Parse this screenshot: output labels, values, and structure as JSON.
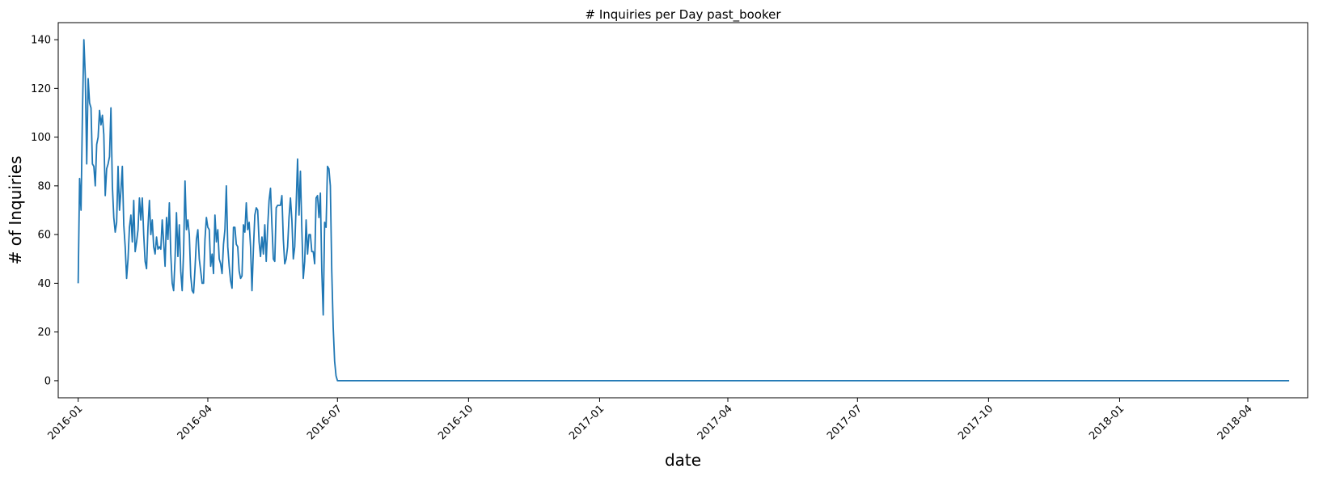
{
  "chart_data": {
    "type": "line",
    "title": "# Inquiries per Day past_booker",
    "xlabel": "date",
    "ylabel": "# of Inquiries",
    "x_type": "date",
    "xlim": [
      "2015-12-18",
      "2018-05-13"
    ],
    "ylim": [
      -7,
      147
    ],
    "x_ticks": [
      "2016-01",
      "2016-04",
      "2016-07",
      "2016-10",
      "2017-01",
      "2017-04",
      "2017-07",
      "2017-10",
      "2018-01",
      "2018-04"
    ],
    "y_ticks": [
      0,
      20,
      40,
      60,
      80,
      100,
      120,
      140
    ],
    "grid": false,
    "legend": "none",
    "series": [
      {
        "color": "#1f77b4",
        "points": [
          [
            "2016-01-01",
            40
          ],
          [
            "2016-01-02",
            83
          ],
          [
            "2016-01-03",
            70
          ],
          [
            "2016-01-04",
            110
          ],
          [
            "2016-01-05",
            140
          ],
          [
            "2016-01-06",
            125
          ],
          [
            "2016-01-07",
            89
          ],
          [
            "2016-01-08",
            124
          ],
          [
            "2016-01-09",
            114
          ],
          [
            "2016-01-10",
            112
          ],
          [
            "2016-01-11",
            89
          ],
          [
            "2016-01-12",
            88
          ],
          [
            "2016-01-13",
            80
          ],
          [
            "2016-01-14",
            97
          ],
          [
            "2016-01-15",
            100
          ],
          [
            "2016-01-16",
            111
          ],
          [
            "2016-01-17",
            105
          ],
          [
            "2016-01-18",
            109
          ],
          [
            "2016-01-19",
            101
          ],
          [
            "2016-01-20",
            76
          ],
          [
            "2016-01-21",
            87
          ],
          [
            "2016-01-22",
            89
          ],
          [
            "2016-01-23",
            92
          ],
          [
            "2016-01-24",
            112
          ],
          [
            "2016-01-25",
            80
          ],
          [
            "2016-01-26",
            67
          ],
          [
            "2016-01-27",
            61
          ],
          [
            "2016-01-28",
            65
          ],
          [
            "2016-01-29",
            88
          ],
          [
            "2016-01-30",
            70
          ],
          [
            "2016-01-31",
            78
          ],
          [
            "2016-02-01",
            88
          ],
          [
            "2016-02-02",
            64
          ],
          [
            "2016-02-03",
            55
          ],
          [
            "2016-02-04",
            42
          ],
          [
            "2016-02-05",
            50
          ],
          [
            "2016-02-06",
            63
          ],
          [
            "2016-02-07",
            68
          ],
          [
            "2016-02-08",
            57
          ],
          [
            "2016-02-09",
            74
          ],
          [
            "2016-02-10",
            53
          ],
          [
            "2016-02-11",
            57
          ],
          [
            "2016-02-12",
            62
          ],
          [
            "2016-02-13",
            75
          ],
          [
            "2016-02-14",
            66
          ],
          [
            "2016-02-15",
            75
          ],
          [
            "2016-02-16",
            60
          ],
          [
            "2016-02-17",
            49
          ],
          [
            "2016-02-18",
            46
          ],
          [
            "2016-02-19",
            63
          ],
          [
            "2016-02-20",
            74
          ],
          [
            "2016-02-21",
            60
          ],
          [
            "2016-02-22",
            66
          ],
          [
            "2016-02-23",
            55
          ],
          [
            "2016-02-24",
            52
          ],
          [
            "2016-02-25",
            59
          ],
          [
            "2016-02-26",
            54
          ],
          [
            "2016-02-27",
            55
          ],
          [
            "2016-02-28",
            54
          ],
          [
            "2016-02-29",
            66
          ],
          [
            "2016-03-01",
            57
          ],
          [
            "2016-03-02",
            47
          ],
          [
            "2016-03-03",
            67
          ],
          [
            "2016-03-04",
            58
          ],
          [
            "2016-03-05",
            73
          ],
          [
            "2016-03-06",
            52
          ],
          [
            "2016-03-07",
            40
          ],
          [
            "2016-03-08",
            37
          ],
          [
            "2016-03-09",
            50
          ],
          [
            "2016-03-10",
            69
          ],
          [
            "2016-03-11",
            51
          ],
          [
            "2016-03-12",
            64
          ],
          [
            "2016-03-13",
            45
          ],
          [
            "2016-03-14",
            37
          ],
          [
            "2016-03-15",
            53
          ],
          [
            "2016-03-16",
            82
          ],
          [
            "2016-03-17",
            62
          ],
          [
            "2016-03-18",
            66
          ],
          [
            "2016-03-19",
            60
          ],
          [
            "2016-03-20",
            43
          ],
          [
            "2016-03-21",
            37
          ],
          [
            "2016-03-22",
            36
          ],
          [
            "2016-03-23",
            46
          ],
          [
            "2016-03-24",
            58
          ],
          [
            "2016-03-25",
            62
          ],
          [
            "2016-03-26",
            50
          ],
          [
            "2016-03-27",
            45
          ],
          [
            "2016-03-28",
            40
          ],
          [
            "2016-03-29",
            40
          ],
          [
            "2016-03-30",
            58
          ],
          [
            "2016-03-31",
            67
          ],
          [
            "2016-04-01",
            63
          ],
          [
            "2016-04-02",
            62
          ],
          [
            "2016-04-03",
            47
          ],
          [
            "2016-04-04",
            52
          ],
          [
            "2016-04-05",
            44
          ],
          [
            "2016-04-06",
            68
          ],
          [
            "2016-04-07",
            57
          ],
          [
            "2016-04-08",
            62
          ],
          [
            "2016-04-09",
            50
          ],
          [
            "2016-04-10",
            48
          ],
          [
            "2016-04-11",
            44
          ],
          [
            "2016-04-12",
            56
          ],
          [
            "2016-04-13",
            62
          ],
          [
            "2016-04-14",
            80
          ],
          [
            "2016-04-15",
            55
          ],
          [
            "2016-04-16",
            47
          ],
          [
            "2016-04-17",
            41
          ],
          [
            "2016-04-18",
            38
          ],
          [
            "2016-04-19",
            63
          ],
          [
            "2016-04-20",
            63
          ],
          [
            "2016-04-21",
            56
          ],
          [
            "2016-04-22",
            55
          ],
          [
            "2016-04-23",
            45
          ],
          [
            "2016-04-24",
            42
          ],
          [
            "2016-04-25",
            43
          ],
          [
            "2016-04-26",
            64
          ],
          [
            "2016-04-27",
            61
          ],
          [
            "2016-04-28",
            73
          ],
          [
            "2016-04-29",
            62
          ],
          [
            "2016-04-30",
            65
          ],
          [
            "2016-05-01",
            55
          ],
          [
            "2016-05-02",
            37
          ],
          [
            "2016-05-03",
            54
          ],
          [
            "2016-05-04",
            68
          ],
          [
            "2016-05-05",
            71
          ],
          [
            "2016-05-06",
            70
          ],
          [
            "2016-05-07",
            57
          ],
          [
            "2016-05-08",
            51
          ],
          [
            "2016-05-09",
            59
          ],
          [
            "2016-05-10",
            52
          ],
          [
            "2016-05-11",
            64
          ],
          [
            "2016-05-12",
            49
          ],
          [
            "2016-05-13",
            63
          ],
          [
            "2016-05-14",
            74
          ],
          [
            "2016-05-15",
            79
          ],
          [
            "2016-05-16",
            64
          ],
          [
            "2016-05-17",
            50
          ],
          [
            "2016-05-18",
            49
          ],
          [
            "2016-05-19",
            71
          ],
          [
            "2016-05-20",
            72
          ],
          [
            "2016-05-21",
            72
          ],
          [
            "2016-05-22",
            72
          ],
          [
            "2016-05-23",
            76
          ],
          [
            "2016-05-24",
            58
          ],
          [
            "2016-05-25",
            48
          ],
          [
            "2016-05-26",
            50
          ],
          [
            "2016-05-27",
            55
          ],
          [
            "2016-05-28",
            67
          ],
          [
            "2016-05-29",
            75
          ],
          [
            "2016-05-30",
            66
          ],
          [
            "2016-05-31",
            50
          ],
          [
            "2016-06-01",
            55
          ],
          [
            "2016-06-02",
            72
          ],
          [
            "2016-06-03",
            91
          ],
          [
            "2016-06-04",
            68
          ],
          [
            "2016-06-05",
            86
          ],
          [
            "2016-06-06",
            62
          ],
          [
            "2016-06-07",
            42
          ],
          [
            "2016-06-08",
            49
          ],
          [
            "2016-06-09",
            66
          ],
          [
            "2016-06-10",
            52
          ],
          [
            "2016-06-11",
            60
          ],
          [
            "2016-06-12",
            60
          ],
          [
            "2016-06-13",
            53
          ],
          [
            "2016-06-14",
            53
          ],
          [
            "2016-06-15",
            48
          ],
          [
            "2016-06-16",
            75
          ],
          [
            "2016-06-17",
            76
          ],
          [
            "2016-06-18",
            67
          ],
          [
            "2016-06-19",
            77
          ],
          [
            "2016-06-20",
            45
          ],
          [
            "2016-06-21",
            27
          ],
          [
            "2016-06-22",
            65
          ],
          [
            "2016-06-23",
            63
          ],
          [
            "2016-06-24",
            88
          ],
          [
            "2016-06-25",
            87
          ],
          [
            "2016-06-26",
            80
          ],
          [
            "2016-06-27",
            45
          ],
          [
            "2016-06-28",
            22
          ],
          [
            "2016-06-29",
            8
          ],
          [
            "2016-06-30",
            2
          ],
          [
            "2016-07-01",
            0
          ],
          [
            "2018-04-30",
            0
          ]
        ]
      }
    ]
  }
}
